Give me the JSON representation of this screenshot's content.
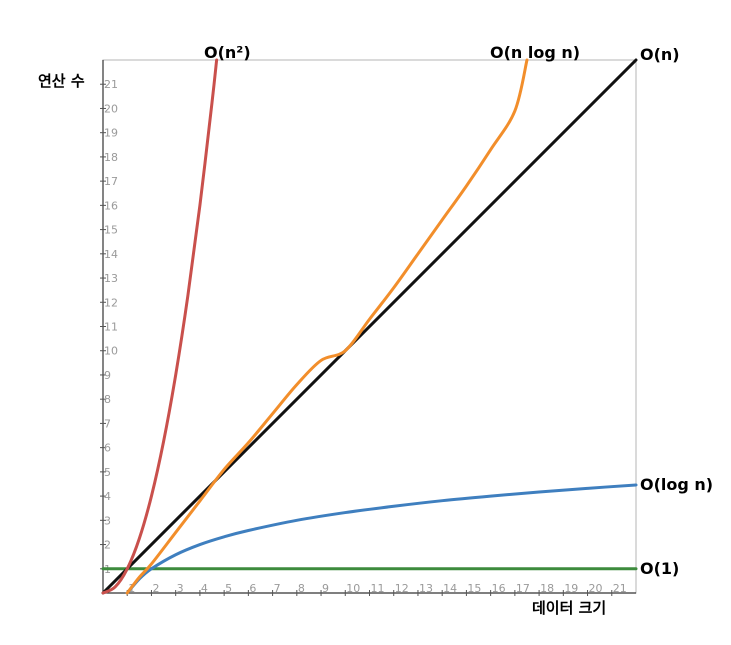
{
  "chart_data": {
    "type": "line",
    "xlabel": "데이터 크기",
    "ylabel": "연산 수",
    "xlim": [
      0,
      22
    ],
    "ylim": [
      0,
      22
    ],
    "x_ticks": [
      1,
      2,
      3,
      4,
      5,
      6,
      7,
      8,
      9,
      10,
      11,
      12,
      13,
      14,
      15,
      16,
      17,
      18,
      19,
      20,
      21
    ],
    "y_ticks": [
      1,
      2,
      3,
      4,
      5,
      6,
      7,
      8,
      9,
      10,
      11,
      12,
      13,
      14,
      15,
      16,
      17,
      18,
      19,
      20,
      21
    ],
    "grid": false,
    "series": [
      {
        "name": "O(1)",
        "color": "#3d8b3d",
        "x": [
          0,
          22
        ],
        "y": [
          1,
          1
        ]
      },
      {
        "name": "O(log n)",
        "color": "#3f7fbf",
        "x": [
          1,
          1.5,
          2,
          3,
          4,
          5,
          6,
          8,
          10,
          12,
          14,
          16,
          18,
          20,
          22
        ],
        "y": [
          0,
          0.58,
          1,
          1.58,
          2,
          2.32,
          2.58,
          3,
          3.32,
          3.58,
          3.81,
          4,
          4.17,
          4.32,
          4.46
        ]
      },
      {
        "name": "O(n)",
        "color": "#111111",
        "x": [
          0,
          22
        ],
        "y": [
          0,
          22
        ]
      },
      {
        "name": "O(n log n)",
        "color": "#f28e2b",
        "x": [
          1,
          1.5,
          2,
          3,
          4,
          5,
          6,
          7,
          8,
          9,
          10,
          11,
          12,
          13,
          14,
          15,
          16,
          17,
          17.5
        ],
        "y": [
          0,
          0.65,
          1.2,
          2.5,
          3.8,
          5.1,
          6.2,
          7.4,
          8.6,
          9.6,
          10.0,
          11.3,
          12.6,
          14.0,
          15.4,
          16.8,
          18.3,
          19.9,
          22.0
        ]
      },
      {
        "name": "O(n²)",
        "color": "#c9504c",
        "x": [
          0,
          0.5,
          1,
          1.5,
          2,
          2.5,
          3,
          3.5,
          4,
          4.5,
          4.69
        ],
        "y": [
          0,
          0.25,
          1,
          2.25,
          4,
          6.25,
          9,
          12.25,
          16,
          20.25,
          22
        ]
      }
    ]
  }
}
